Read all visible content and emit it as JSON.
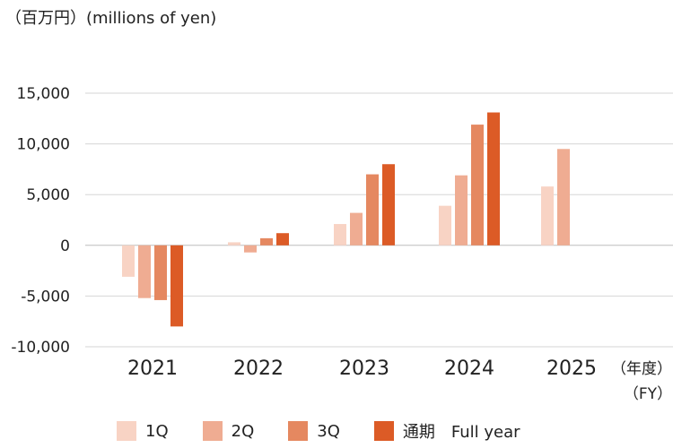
{
  "unit_label": "（百万円）(millions of yen)",
  "x_unit": [
    "（年度）",
    "（FY）"
  ],
  "legend": [
    "1Q",
    "2Q",
    "3Q",
    "通期　Full year"
  ],
  "colors": [
    "#f8d3c4",
    "#efac92",
    "#e58860",
    "#dc5b26"
  ],
  "chart_data": {
    "type": "bar",
    "categories": [
      "2021",
      "2022",
      "2023",
      "2024",
      "2025"
    ],
    "series": [
      {
        "name": "1Q",
        "values": [
          -3100,
          300,
          2100,
          3900,
          5800
        ]
      },
      {
        "name": "2Q",
        "values": [
          -5200,
          -700,
          3200,
          6900,
          9500
        ]
      },
      {
        "name": "3Q",
        "values": [
          -5400,
          700,
          7000,
          11900,
          null
        ]
      },
      {
        "name": "通期　Full year",
        "values": [
          -8000,
          1200,
          8000,
          13100,
          null
        ]
      }
    ],
    "yticks": [
      15000,
      10000,
      5000,
      0,
      -5000,
      -10000
    ],
    "ylim": [
      -10000,
      15000
    ],
    "grid": true,
    "legend_position": "bottom"
  }
}
